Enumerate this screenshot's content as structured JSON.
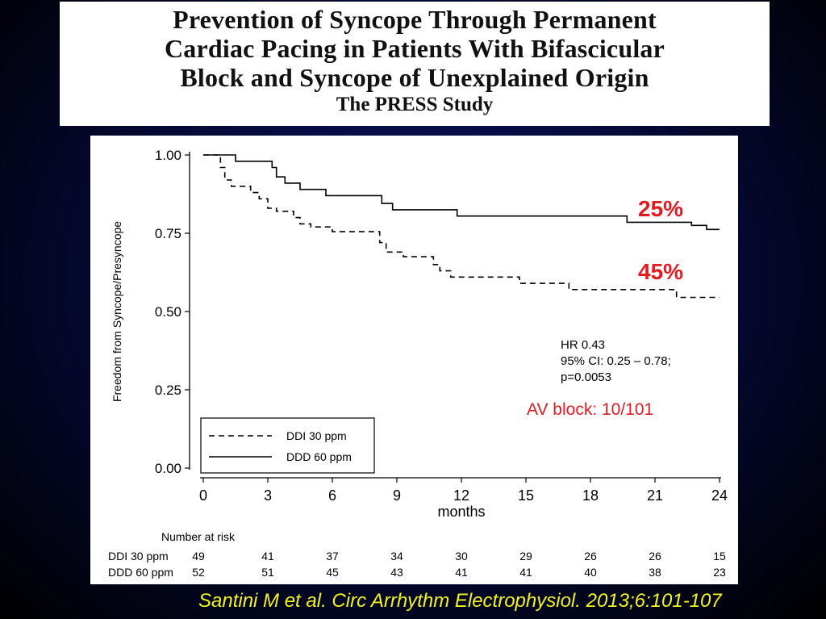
{
  "slide": {
    "title_lines": [
      "Prevention of Syncope Through Permanent",
      "Cardiac Pacing in Patients With Bifascicular",
      "Block and Syncope of Unexplained Origin"
    ],
    "subtitle": "The PRESS Study",
    "citation": "Santini M et al. Circ Arrhythm Electrophysiol. 2013;6:101-107"
  },
  "chart_data": {
    "type": "line",
    "title": "",
    "xlabel": "months",
    "ylabel": "Freedom from Syncope/Presyncope",
    "xlim": [
      0,
      24
    ],
    "ylim": [
      0,
      1
    ],
    "x_ticks": [
      0,
      3,
      6,
      9,
      12,
      15,
      18,
      21,
      24
    ],
    "y_ticks": [
      "0.00",
      "0.25",
      "0.50",
      "0.75",
      "1.00"
    ],
    "y_tick_values": [
      0,
      0.25,
      0.5,
      0.75,
      1.0
    ],
    "legend_position": "bottom-left",
    "series": [
      {
        "name": "DDI 30 ppm",
        "style": "dashed",
        "points": [
          [
            0,
            1.0
          ],
          [
            0.8,
            1.0
          ],
          [
            0.8,
            0.96
          ],
          [
            1.0,
            0.96
          ],
          [
            1.0,
            0.92
          ],
          [
            1.3,
            0.92
          ],
          [
            1.3,
            0.9
          ],
          [
            2.2,
            0.9
          ],
          [
            2.2,
            0.88
          ],
          [
            2.6,
            0.88
          ],
          [
            2.6,
            0.86
          ],
          [
            3.0,
            0.86
          ],
          [
            3.0,
            0.83
          ],
          [
            3.4,
            0.83
          ],
          [
            3.4,
            0.82
          ],
          [
            4.2,
            0.82
          ],
          [
            4.2,
            0.8
          ],
          [
            4.5,
            0.8
          ],
          [
            4.5,
            0.78
          ],
          [
            5.0,
            0.78
          ],
          [
            5.0,
            0.77
          ],
          [
            6.0,
            0.77
          ],
          [
            6.0,
            0.755
          ],
          [
            8.2,
            0.755
          ],
          [
            8.2,
            0.72
          ],
          [
            8.5,
            0.72
          ],
          [
            8.5,
            0.69
          ],
          [
            9.3,
            0.69
          ],
          [
            9.3,
            0.675
          ],
          [
            10.7,
            0.675
          ],
          [
            10.7,
            0.65
          ],
          [
            11.0,
            0.65
          ],
          [
            11.0,
            0.63
          ],
          [
            11.5,
            0.63
          ],
          [
            11.5,
            0.61
          ],
          [
            14.7,
            0.61
          ],
          [
            14.7,
            0.59
          ],
          [
            17.0,
            0.59
          ],
          [
            17.0,
            0.57
          ],
          [
            22.0,
            0.57
          ],
          [
            22.0,
            0.545
          ],
          [
            24.0,
            0.545
          ]
        ]
      },
      {
        "name": "DDD 60 ppm",
        "style": "solid",
        "points": [
          [
            0,
            1.0
          ],
          [
            1.5,
            1.0
          ],
          [
            1.5,
            0.98
          ],
          [
            3.2,
            0.98
          ],
          [
            3.2,
            0.96
          ],
          [
            3.4,
            0.96
          ],
          [
            3.4,
            0.93
          ],
          [
            3.8,
            0.93
          ],
          [
            3.8,
            0.91
          ],
          [
            4.5,
            0.91
          ],
          [
            4.5,
            0.89
          ],
          [
            5.7,
            0.89
          ],
          [
            5.7,
            0.87
          ],
          [
            8.3,
            0.87
          ],
          [
            8.3,
            0.845
          ],
          [
            8.8,
            0.845
          ],
          [
            8.8,
            0.825
          ],
          [
            11.8,
            0.825
          ],
          [
            11.8,
            0.805
          ],
          [
            19.7,
            0.805
          ],
          [
            19.7,
            0.785
          ],
          [
            22.7,
            0.785
          ],
          [
            22.7,
            0.775
          ],
          [
            23.4,
            0.775
          ],
          [
            23.4,
            0.762
          ],
          [
            24.0,
            0.762
          ]
        ]
      }
    ],
    "annotations": {
      "pct_ddd": "25%",
      "pct_ddi": "45%",
      "stats_lines": [
        "HR 0.43",
        "95% CI: 0.25 – 0.78;",
        "p=0.0053"
      ],
      "av_block": "AV block: 10/101",
      "highlight_color": "#e11b22"
    },
    "risk_table": {
      "header": "Number at risk",
      "times": [
        0,
        3,
        6,
        9,
        12,
        15,
        18,
        21,
        24
      ],
      "rows": [
        {
          "label": "DDI 30 ppm",
          "values": [
            "49",
            "41",
            "37",
            "34",
            "30",
            "29",
            "26",
            "26",
            "15"
          ]
        },
        {
          "label": "DDD 60 ppm",
          "values": [
            "52",
            "51",
            "45",
            "43",
            "41",
            "41",
            "40",
            "38",
            "23"
          ]
        }
      ]
    }
  }
}
